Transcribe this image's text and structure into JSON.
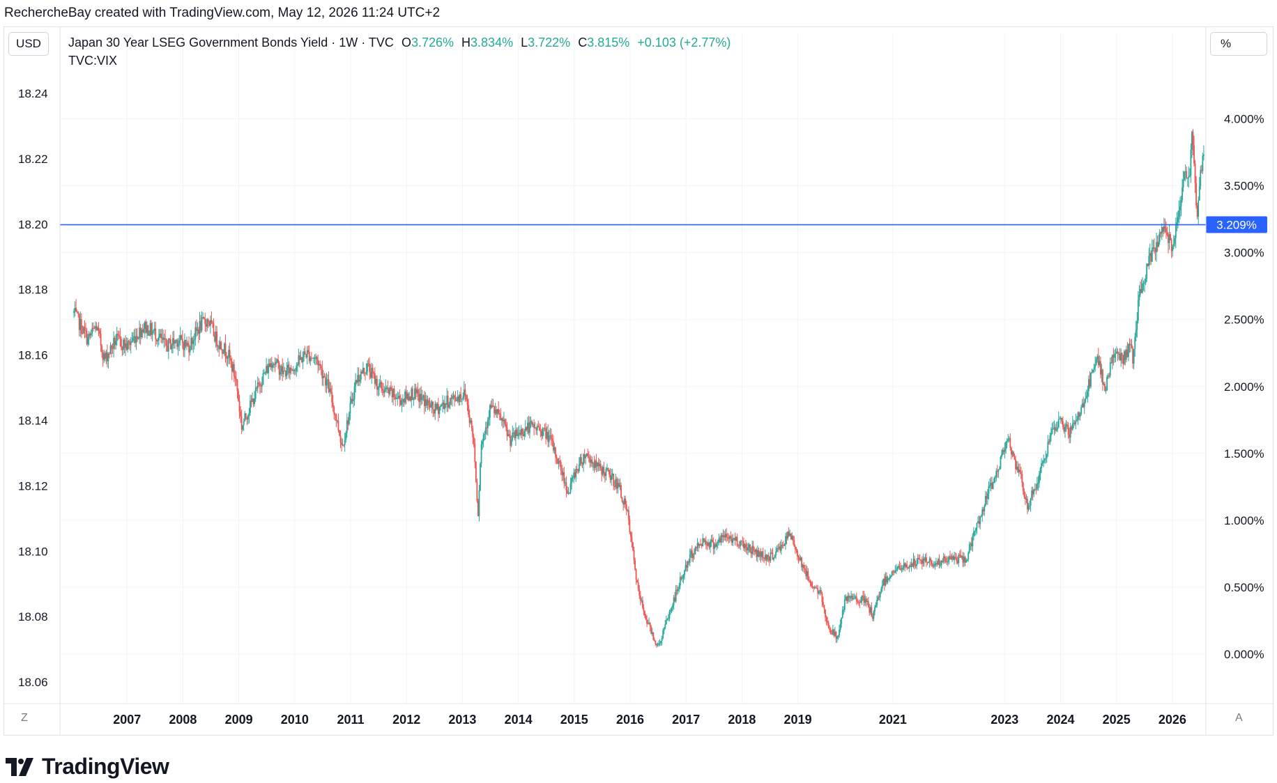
{
  "header": {
    "attribution": "RechercheBay created with TradingView.com, May 12, 2026 11:24 UTC+2"
  },
  "toolbar": {
    "currency_button": "USD",
    "percent_button": "%",
    "z_button": "Z",
    "a_button": "A"
  },
  "legend": {
    "title": "Japan 30 Year LSEG Government Bonds Yield · 1W · TVC",
    "open_key": "O",
    "open": "3.726%",
    "high_key": "H",
    "high": "3.834%",
    "low_key": "L",
    "low": "3.722%",
    "close_key": "C",
    "close": "3.815%",
    "change": "+0.103 (+2.77%)",
    "second_series": "TVC:VIX"
  },
  "footer": {
    "logo_text": "TradingView"
  },
  "colors": {
    "up": "#26a69a",
    "down": "#ef5350",
    "hline": "#2962ff",
    "grid": "#f0f3fa"
  },
  "chart_data": {
    "type": "candlestick",
    "title": "Japan 30 Year LSEG Government Bonds Yield · 1W · TVC",
    "x_tick_labels": [
      "2007",
      "2008",
      "2009",
      "2010",
      "2011",
      "2012",
      "2013",
      "2014",
      "2015",
      "2016",
      "2017",
      "2018",
      "2019",
      "2021",
      "2023",
      "2024",
      "2025",
      "2026"
    ],
    "x_ticks": [
      2007.0,
      2008.0,
      2009.0,
      2010.0,
      2011.0,
      2012.0,
      2013.0,
      2014.0,
      2015.0,
      2016.0,
      2017.0,
      2018.0,
      2019.0,
      2020.7,
      2022.7,
      2023.7,
      2024.7,
      2025.7
    ],
    "xlim": [
      2005.8,
      2026.3
    ],
    "right_axis": {
      "ticks": [
        "4.000%",
        "3.500%",
        "3.000%",
        "2.500%",
        "2.000%",
        "1.500%",
        "1.000%",
        "0.500%",
        "0.000%"
      ],
      "tick_values": [
        4.0,
        3.5,
        3.0,
        2.5,
        2.0,
        1.5,
        1.0,
        0.5,
        0.0
      ],
      "ylim": [
        -0.37,
        4.43
      ]
    },
    "left_axis": {
      "ticks": [
        "18.24",
        "18.22",
        "18.20",
        "18.18",
        "18.16",
        "18.14",
        "18.12",
        "18.10",
        "18.08",
        "18.06"
      ],
      "tick_values": [
        18.24,
        18.22,
        18.2,
        18.18,
        18.16,
        18.14,
        18.12,
        18.1,
        18.08,
        18.06
      ]
    },
    "horizontal_line": {
      "value": 3.209,
      "label": "3.209%"
    },
    "grid": true,
    "series": [
      {
        "name": "Japan 30 Year LSEG Government Bonds Yield",
        "path": [
          [
            2006.05,
            2.55
          ],
          [
            2006.3,
            2.35
          ],
          [
            2006.45,
            2.45
          ],
          [
            2006.6,
            2.2
          ],
          [
            2006.8,
            2.35
          ],
          [
            2007.0,
            2.3
          ],
          [
            2007.3,
            2.45
          ],
          [
            2007.5,
            2.4
          ],
          [
            2007.7,
            2.3
          ],
          [
            2007.9,
            2.35
          ],
          [
            2008.1,
            2.3
          ],
          [
            2008.3,
            2.45
          ],
          [
            2008.45,
            2.5
          ],
          [
            2008.6,
            2.35
          ],
          [
            2008.8,
            2.25
          ],
          [
            2008.95,
            2.05
          ],
          [
            2009.05,
            1.7
          ],
          [
            2009.2,
            1.85
          ],
          [
            2009.4,
            2.05
          ],
          [
            2009.6,
            2.2
          ],
          [
            2009.8,
            2.1
          ],
          [
            2010.0,
            2.15
          ],
          [
            2010.2,
            2.25
          ],
          [
            2010.4,
            2.2
          ],
          [
            2010.6,
            2.0
          ],
          [
            2010.75,
            1.75
          ],
          [
            2010.85,
            1.55
          ],
          [
            2011.0,
            1.85
          ],
          [
            2011.1,
            2.05
          ],
          [
            2011.3,
            2.15
          ],
          [
            2011.5,
            2.0
          ],
          [
            2011.7,
            1.95
          ],
          [
            2011.9,
            1.9
          ],
          [
            2012.1,
            1.95
          ],
          [
            2012.3,
            1.9
          ],
          [
            2012.5,
            1.82
          ],
          [
            2012.7,
            1.88
          ],
          [
            2012.9,
            1.92
          ],
          [
            2013.05,
            1.95
          ],
          [
            2013.2,
            1.6
          ],
          [
            2013.28,
            1.05
          ],
          [
            2013.33,
            1.55
          ],
          [
            2013.5,
            1.85
          ],
          [
            2013.7,
            1.75
          ],
          [
            2013.85,
            1.6
          ],
          [
            2014.0,
            1.65
          ],
          [
            2014.2,
            1.7
          ],
          [
            2014.4,
            1.68
          ],
          [
            2014.55,
            1.62
          ],
          [
            2014.75,
            1.4
          ],
          [
            2014.9,
            1.2
          ],
          [
            2015.0,
            1.35
          ],
          [
            2015.2,
            1.5
          ],
          [
            2015.4,
            1.4
          ],
          [
            2015.6,
            1.35
          ],
          [
            2015.8,
            1.25
          ],
          [
            2015.95,
            1.05
          ],
          [
            2016.15,
            0.45
          ],
          [
            2016.3,
            0.25
          ],
          [
            2016.5,
            0.05
          ],
          [
            2016.7,
            0.3
          ],
          [
            2016.9,
            0.55
          ],
          [
            2017.1,
            0.75
          ],
          [
            2017.3,
            0.85
          ],
          [
            2017.5,
            0.82
          ],
          [
            2017.7,
            0.88
          ],
          [
            2017.9,
            0.85
          ],
          [
            2018.1,
            0.8
          ],
          [
            2018.3,
            0.75
          ],
          [
            2018.5,
            0.72
          ],
          [
            2018.7,
            0.8
          ],
          [
            2018.85,
            0.9
          ],
          [
            2019.0,
            0.75
          ],
          [
            2019.2,
            0.55
          ],
          [
            2019.4,
            0.45
          ],
          [
            2019.55,
            0.2
          ],
          [
            2019.7,
            0.12
          ],
          [
            2019.85,
            0.4
          ],
          [
            2020.0,
            0.42
          ],
          [
            2020.2,
            0.4
          ],
          [
            2020.35,
            0.28
          ],
          [
            2020.5,
            0.52
          ],
          [
            2020.7,
            0.62
          ],
          [
            2020.9,
            0.65
          ],
          [
            2021.2,
            0.7
          ],
          [
            2021.5,
            0.68
          ],
          [
            2021.8,
            0.72
          ],
          [
            2022.0,
            0.7
          ],
          [
            2022.2,
            0.95
          ],
          [
            2022.4,
            1.2
          ],
          [
            2022.6,
            1.4
          ],
          [
            2022.75,
            1.65
          ],
          [
            2022.85,
            1.45
          ],
          [
            2023.0,
            1.3
          ],
          [
            2023.1,
            1.1
          ],
          [
            2023.3,
            1.3
          ],
          [
            2023.5,
            1.6
          ],
          [
            2023.7,
            1.75
          ],
          [
            2023.85,
            1.65
          ],
          [
            2024.0,
            1.75
          ],
          [
            2024.2,
            2.0
          ],
          [
            2024.35,
            2.2
          ],
          [
            2024.5,
            2.0
          ],
          [
            2024.65,
            2.25
          ],
          [
            2024.8,
            2.2
          ],
          [
            2024.95,
            2.3
          ],
          [
            2025.0,
            2.2
          ],
          [
            2025.1,
            2.65
          ],
          [
            2025.3,
            2.95
          ],
          [
            2025.45,
            3.1
          ],
          [
            2025.55,
            3.2
          ],
          [
            2025.7,
            3.05
          ],
          [
            2025.8,
            3.3
          ],
          [
            2025.9,
            3.55
          ],
          [
            2026.0,
            3.55
          ],
          [
            2026.05,
            3.9
          ],
          [
            2026.1,
            3.6
          ],
          [
            2026.15,
            3.25
          ],
          [
            2026.2,
            3.55
          ],
          [
            2026.28,
            3.815
          ]
        ]
      }
    ]
  }
}
